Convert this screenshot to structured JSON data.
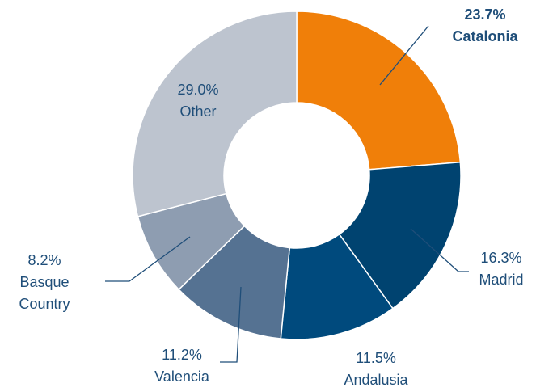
{
  "chart_data": {
    "type": "donut",
    "categories": [
      "Catalonia",
      "Madrid",
      "Andalusia",
      "Valencia",
      "Basque Country",
      "Other"
    ],
    "values": [
      23.7,
      16.3,
      11.5,
      11.2,
      8.2,
      29.0
    ],
    "value_labels": [
      "23.7%",
      "16.3%",
      "11.5%",
      "11.2%",
      "8.2%",
      "29.0%"
    ],
    "colors": [
      "#f07f09",
      "#004370",
      "#004a7d",
      "#557292",
      "#8e9db1",
      "#bdc4cf"
    ]
  }
}
